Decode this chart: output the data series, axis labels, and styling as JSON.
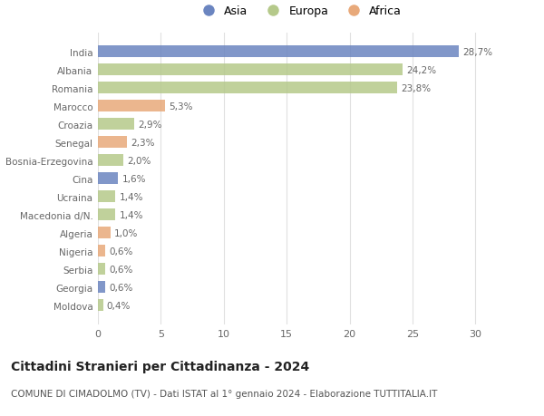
{
  "countries": [
    "India",
    "Albania",
    "Romania",
    "Marocco",
    "Croazia",
    "Senegal",
    "Bosnia-Erzegovina",
    "Cina",
    "Ucraina",
    "Macedonia d/N.",
    "Algeria",
    "Nigeria",
    "Serbia",
    "Georgia",
    "Moldova"
  ],
  "values": [
    28.7,
    24.2,
    23.8,
    5.3,
    2.9,
    2.3,
    2.0,
    1.6,
    1.4,
    1.4,
    1.0,
    0.6,
    0.6,
    0.6,
    0.4
  ],
  "labels": [
    "28,7%",
    "24,2%",
    "23,8%",
    "5,3%",
    "2,9%",
    "2,3%",
    "2,0%",
    "1,6%",
    "1,4%",
    "1,4%",
    "1,0%",
    "0,6%",
    "0,6%",
    "0,6%",
    "0,4%"
  ],
  "continents": [
    "Asia",
    "Europa",
    "Europa",
    "Africa",
    "Europa",
    "Africa",
    "Europa",
    "Asia",
    "Europa",
    "Europa",
    "Africa",
    "Africa",
    "Europa",
    "Asia",
    "Europa"
  ],
  "colors": {
    "Asia": "#6b85c0",
    "Europa": "#b5c98a",
    "Africa": "#e8a97a"
  },
  "legend_labels": [
    "Asia",
    "Europa",
    "Africa"
  ],
  "legend_colors": [
    "#6b85c0",
    "#b5c98a",
    "#e8a97a"
  ],
  "title": "Cittadini Stranieri per Cittadinanza - 2024",
  "subtitle": "COMUNE DI CIMADOLMO (TV) - Dati ISTAT al 1° gennaio 2024 - Elaborazione TUTTITALIA.IT",
  "xlim": [
    0,
    32
  ],
  "xticks": [
    0,
    5,
    10,
    15,
    20,
    25,
    30
  ],
  "background_color": "#ffffff",
  "bar_height": 0.65,
  "label_fontsize": 7.5,
  "tick_fontsize": 8,
  "title_fontsize": 10,
  "subtitle_fontsize": 7.5
}
